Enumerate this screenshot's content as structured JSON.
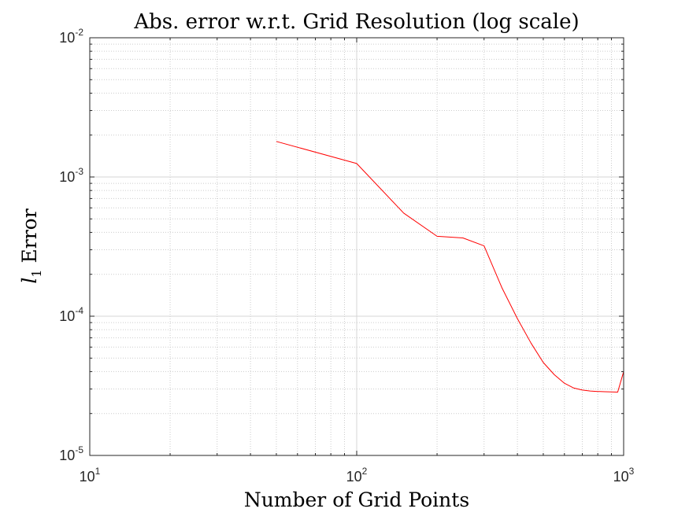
{
  "chart_data": {
    "type": "line",
    "title": "Abs. error w.r.t. Grid Resolution (log scale)",
    "xlabel": "Number of Grid Points",
    "ylabel_main": "l",
    "ylabel_sub": "1",
    "ylabel_rest": " Error",
    "xscale": "log",
    "yscale": "log",
    "xlim": [
      10,
      1000
    ],
    "ylim": [
      1e-05,
      0.01
    ],
    "grid": true,
    "legend": "none",
    "x_ticks": [
      {
        "value": 10,
        "base": "10",
        "exp": "1"
      },
      {
        "value": 100,
        "base": "10",
        "exp": "2"
      },
      {
        "value": 1000,
        "base": "10",
        "exp": "3"
      }
    ],
    "y_ticks": [
      {
        "value": 1e-05,
        "base": "10",
        "exp": "-5"
      },
      {
        "value": 0.0001,
        "base": "10",
        "exp": "-4"
      },
      {
        "value": 0.001,
        "base": "10",
        "exp": "-3"
      },
      {
        "value": 0.01,
        "base": "10",
        "exp": "-2"
      }
    ],
    "series": [
      {
        "color": "#ff0000",
        "x": [
          50,
          100,
          150,
          200,
          250,
          300,
          350,
          400,
          450,
          500,
          550,
          600,
          650,
          700,
          750,
          800,
          850,
          900,
          950,
          1000
        ],
        "y": [
          0.0018,
          0.00125,
          0.00055,
          0.000375,
          0.000365,
          0.00032,
          0.00016,
          9.6e-05,
          6.4e-05,
          4.65e-05,
          3.8e-05,
          3.3e-05,
          3.05e-05,
          2.95e-05,
          2.9e-05,
          2.88e-05,
          2.87e-05,
          2.86e-05,
          2.85e-05,
          4e-05
        ]
      }
    ]
  },
  "colors": {
    "axes": "#262626",
    "grid_minor": "#cccccc",
    "grid_major": "#d6d6d6",
    "line": "#ff0000",
    "background": "#ffffff"
  }
}
